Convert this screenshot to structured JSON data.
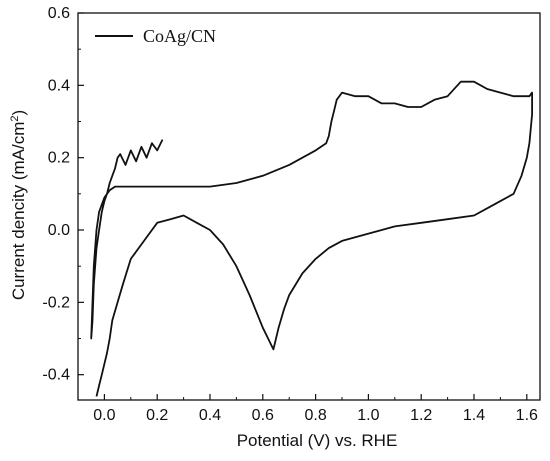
{
  "chart_data": {
    "type": "line",
    "title": "",
    "xlabel": "Potential (V) vs. RHE",
    "ylabel": "Current dencity (mA/cm²)",
    "ylabel_parts": {
      "main": "Current dencity (mA/cm",
      "sup": "2",
      "tail": ")"
    },
    "xlim": [
      -0.1,
      1.65
    ],
    "ylim": [
      -0.47,
      0.6
    ],
    "x_ticks": [
      0.0,
      0.2,
      0.4,
      0.6,
      0.8,
      1.0,
      1.2,
      1.4,
      1.6
    ],
    "x_tick_labels": [
      "0.0",
      "0.2",
      "0.4",
      "0.6",
      "0.8",
      "1.0",
      "1.2",
      "1.4",
      "1.6"
    ],
    "y_ticks": [
      -0.4,
      -0.2,
      0.0,
      0.2,
      0.4,
      0.6
    ],
    "y_tick_labels": [
      "-0.4",
      "-0.2",
      "0.0",
      "0.2",
      "0.4",
      "0.6"
    ],
    "grid": false,
    "legend_position": "top-left",
    "colors": {
      "line": "#111111",
      "axis": "#111111",
      "background": "#ffffff"
    },
    "series": [
      {
        "name": "CoAg/CN",
        "x": [
          0.22,
          0.2,
          0.18,
          0.16,
          0.14,
          0.12,
          0.1,
          0.08,
          0.06,
          0.05,
          0.04,
          0.03,
          0.02,
          0.01,
          0.0,
          -0.01,
          -0.02,
          -0.03,
          -0.04,
          -0.045,
          -0.05,
          -0.04,
          -0.03,
          -0.02,
          0.0,
          0.02,
          0.04,
          0.06,
          0.08,
          0.1,
          0.15,
          0.2,
          0.3,
          0.4,
          0.5,
          0.6,
          0.7,
          0.75,
          0.8,
          0.84,
          0.85,
          0.86,
          0.87,
          0.88,
          0.9,
          0.95,
          1.0,
          1.05,
          1.1,
          1.15,
          1.2,
          1.25,
          1.3,
          1.35,
          1.4,
          1.45,
          1.5,
          1.55,
          1.6,
          1.61,
          1.62,
          1.62,
          1.61,
          1.6,
          1.58,
          1.55,
          1.5,
          1.45,
          1.4,
          1.3,
          1.2,
          1.1,
          1.0,
          0.9,
          0.85,
          0.8,
          0.75,
          0.7,
          0.68,
          0.66,
          0.64,
          0.62,
          0.6,
          0.55,
          0.5,
          0.45,
          0.4,
          0.35,
          0.3,
          0.25,
          0.2,
          0.15,
          0.1,
          0.07,
          0.05,
          0.03,
          0.02,
          0.01,
          0.0,
          -0.01,
          -0.02,
          -0.03
        ],
        "y": [
          0.25,
          0.22,
          0.24,
          0.2,
          0.23,
          0.19,
          0.22,
          0.18,
          0.21,
          0.2,
          0.17,
          0.15,
          0.13,
          0.1,
          0.08,
          0.05,
          0.0,
          -0.05,
          -0.15,
          -0.25,
          -0.3,
          -0.1,
          0.0,
          0.05,
          0.09,
          0.11,
          0.12,
          0.12,
          0.12,
          0.12,
          0.12,
          0.12,
          0.12,
          0.12,
          0.13,
          0.15,
          0.18,
          0.2,
          0.22,
          0.24,
          0.26,
          0.3,
          0.33,
          0.36,
          0.38,
          0.37,
          0.37,
          0.35,
          0.35,
          0.34,
          0.34,
          0.36,
          0.37,
          0.41,
          0.41,
          0.39,
          0.38,
          0.37,
          0.37,
          0.37,
          0.38,
          0.32,
          0.24,
          0.2,
          0.15,
          0.1,
          0.08,
          0.06,
          0.04,
          0.03,
          0.02,
          0.01,
          -0.01,
          -0.03,
          -0.05,
          -0.08,
          -0.12,
          -0.18,
          -0.22,
          -0.27,
          -0.33,
          -0.3,
          -0.27,
          -0.18,
          -0.1,
          -0.04,
          0.0,
          0.02,
          0.04,
          0.03,
          0.02,
          -0.03,
          -0.08,
          -0.15,
          -0.2,
          -0.25,
          -0.3,
          -0.34,
          -0.37,
          -0.4,
          -0.43,
          -0.46
        ]
      }
    ]
  }
}
